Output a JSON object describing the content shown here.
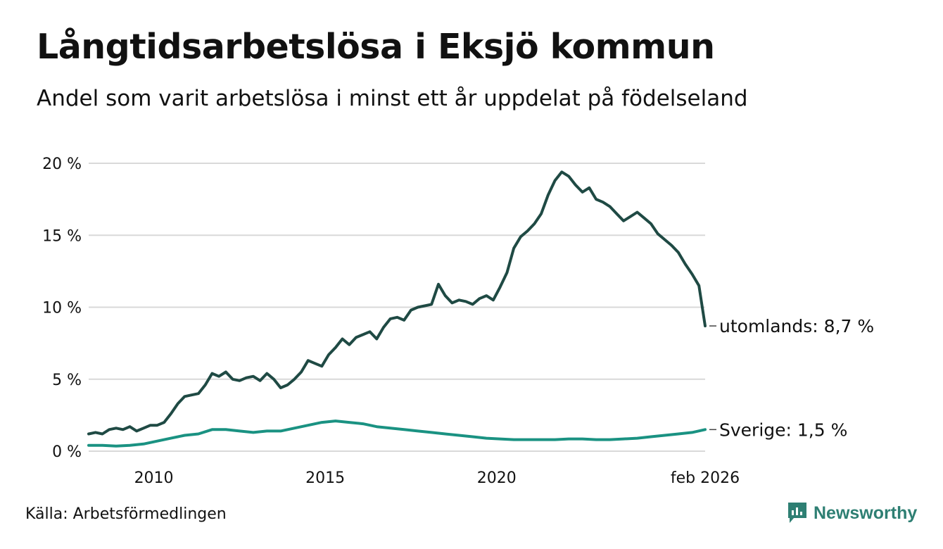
{
  "header": {
    "title": "Långtidsarbetslösa i Eksjö kommun",
    "subtitle": "Andel som varit arbetslösa i minst ett år uppdelat på födelseland"
  },
  "footer": {
    "source": "Källa: Arbetsförmedlingen",
    "brand": "Newsworthy"
  },
  "colors": {
    "utomlands": "#1f4a44",
    "sverige": "#1a9282",
    "grid": "#d9d9d9",
    "brand": "#2e7f73"
  },
  "chart_data": {
    "type": "line",
    "title": "Långtidsarbetslösa i Eksjö kommun",
    "subtitle": "Andel som varit arbetslösa i minst ett år uppdelat på födelseland",
    "xlabel": "",
    "ylabel": "",
    "xlim": [
      2008.1,
      2026.08
    ],
    "ylim": [
      0,
      20
    ],
    "y_ticks": [
      {
        "value": 0,
        "label": "0 %"
      },
      {
        "value": 5,
        "label": "5 %"
      },
      {
        "value": 10,
        "label": "10 %"
      },
      {
        "value": 15,
        "label": "15 %"
      },
      {
        "value": 20,
        "label": "20 %"
      }
    ],
    "x_ticks": [
      {
        "value": 2010,
        "label": "2010"
      },
      {
        "value": 2015,
        "label": "2015"
      },
      {
        "value": 2020,
        "label": "2020"
      },
      {
        "value": 2026.08,
        "label": "feb 2026"
      }
    ],
    "grid": true,
    "series": [
      {
        "name": "utomlands",
        "end_label": "utomlands: 8,7 %",
        "points": [
          [
            2008.1,
            1.2
          ],
          [
            2008.3,
            1.3
          ],
          [
            2008.5,
            1.2
          ],
          [
            2008.7,
            1.5
          ],
          [
            2008.9,
            1.6
          ],
          [
            2009.1,
            1.5
          ],
          [
            2009.3,
            1.7
          ],
          [
            2009.5,
            1.4
          ],
          [
            2009.7,
            1.6
          ],
          [
            2009.9,
            1.8
          ],
          [
            2010.1,
            1.8
          ],
          [
            2010.3,
            2.0
          ],
          [
            2010.5,
            2.6
          ],
          [
            2010.7,
            3.3
          ],
          [
            2010.9,
            3.8
          ],
          [
            2011.1,
            3.9
          ],
          [
            2011.3,
            4.0
          ],
          [
            2011.5,
            4.6
          ],
          [
            2011.7,
            5.4
          ],
          [
            2011.9,
            5.2
          ],
          [
            2012.1,
            5.5
          ],
          [
            2012.3,
            5.0
          ],
          [
            2012.5,
            4.9
          ],
          [
            2012.7,
            5.1
          ],
          [
            2012.9,
            5.2
          ],
          [
            2013.1,
            4.9
          ],
          [
            2013.3,
            5.4
          ],
          [
            2013.5,
            5.0
          ],
          [
            2013.7,
            4.4
          ],
          [
            2013.9,
            4.6
          ],
          [
            2014.1,
            5.0
          ],
          [
            2014.3,
            5.5
          ],
          [
            2014.5,
            6.3
          ],
          [
            2014.7,
            6.1
          ],
          [
            2014.9,
            5.9
          ],
          [
            2015.1,
            6.7
          ],
          [
            2015.3,
            7.2
          ],
          [
            2015.5,
            7.8
          ],
          [
            2015.7,
            7.4
          ],
          [
            2015.9,
            7.9
          ],
          [
            2016.1,
            8.1
          ],
          [
            2016.3,
            8.3
          ],
          [
            2016.5,
            7.8
          ],
          [
            2016.7,
            8.6
          ],
          [
            2016.9,
            9.2
          ],
          [
            2017.1,
            9.3
          ],
          [
            2017.3,
            9.1
          ],
          [
            2017.5,
            9.8
          ],
          [
            2017.7,
            10.0
          ],
          [
            2017.9,
            10.1
          ],
          [
            2018.1,
            10.2
          ],
          [
            2018.3,
            11.6
          ],
          [
            2018.5,
            10.8
          ],
          [
            2018.7,
            10.3
          ],
          [
            2018.9,
            10.5
          ],
          [
            2019.1,
            10.4
          ],
          [
            2019.3,
            10.2
          ],
          [
            2019.5,
            10.6
          ],
          [
            2019.7,
            10.8
          ],
          [
            2019.9,
            10.5
          ],
          [
            2020.1,
            11.4
          ],
          [
            2020.3,
            12.4
          ],
          [
            2020.5,
            14.1
          ],
          [
            2020.7,
            14.9
          ],
          [
            2020.9,
            15.3
          ],
          [
            2021.1,
            15.8
          ],
          [
            2021.3,
            16.5
          ],
          [
            2021.5,
            17.8
          ],
          [
            2021.7,
            18.8
          ],
          [
            2021.9,
            19.4
          ],
          [
            2022.1,
            19.1
          ],
          [
            2022.3,
            18.5
          ],
          [
            2022.5,
            18.0
          ],
          [
            2022.7,
            18.3
          ],
          [
            2022.9,
            17.5
          ],
          [
            2023.1,
            17.3
          ],
          [
            2023.3,
            17.0
          ],
          [
            2023.5,
            16.5
          ],
          [
            2023.7,
            16.0
          ],
          [
            2023.9,
            16.3
          ],
          [
            2024.1,
            16.6
          ],
          [
            2024.3,
            16.2
          ],
          [
            2024.5,
            15.8
          ],
          [
            2024.7,
            15.1
          ],
          [
            2024.9,
            14.7
          ],
          [
            2025.1,
            14.3
          ],
          [
            2025.3,
            13.8
          ],
          [
            2025.5,
            13.0
          ],
          [
            2025.7,
            12.3
          ],
          [
            2025.9,
            11.5
          ],
          [
            2026.08,
            8.7
          ]
        ]
      },
      {
        "name": "Sverige",
        "end_label": "Sverige: 1,5 %",
        "points": [
          [
            2008.1,
            0.4
          ],
          [
            2008.5,
            0.4
          ],
          [
            2008.9,
            0.35
          ],
          [
            2009.3,
            0.4
          ],
          [
            2009.7,
            0.5
          ],
          [
            2010.1,
            0.7
          ],
          [
            2010.5,
            0.9
          ],
          [
            2010.9,
            1.1
          ],
          [
            2011.3,
            1.2
          ],
          [
            2011.7,
            1.5
          ],
          [
            2012.1,
            1.5
          ],
          [
            2012.5,
            1.4
          ],
          [
            2012.9,
            1.3
          ],
          [
            2013.3,
            1.4
          ],
          [
            2013.7,
            1.4
          ],
          [
            2014.1,
            1.6
          ],
          [
            2014.5,
            1.8
          ],
          [
            2014.9,
            2.0
          ],
          [
            2015.3,
            2.1
          ],
          [
            2015.7,
            2.0
          ],
          [
            2016.1,
            1.9
          ],
          [
            2016.5,
            1.7
          ],
          [
            2016.9,
            1.6
          ],
          [
            2017.3,
            1.5
          ],
          [
            2017.7,
            1.4
          ],
          [
            2018.1,
            1.3
          ],
          [
            2018.5,
            1.2
          ],
          [
            2018.9,
            1.1
          ],
          [
            2019.3,
            1.0
          ],
          [
            2019.7,
            0.9
          ],
          [
            2020.1,
            0.85
          ],
          [
            2020.5,
            0.8
          ],
          [
            2020.9,
            0.8
          ],
          [
            2021.3,
            0.8
          ],
          [
            2021.7,
            0.8
          ],
          [
            2022.1,
            0.85
          ],
          [
            2022.5,
            0.85
          ],
          [
            2022.9,
            0.8
          ],
          [
            2023.3,
            0.8
          ],
          [
            2023.7,
            0.85
          ],
          [
            2024.1,
            0.9
          ],
          [
            2024.5,
            1.0
          ],
          [
            2024.9,
            1.1
          ],
          [
            2025.3,
            1.2
          ],
          [
            2025.7,
            1.3
          ],
          [
            2026.08,
            1.5
          ]
        ]
      }
    ]
  }
}
